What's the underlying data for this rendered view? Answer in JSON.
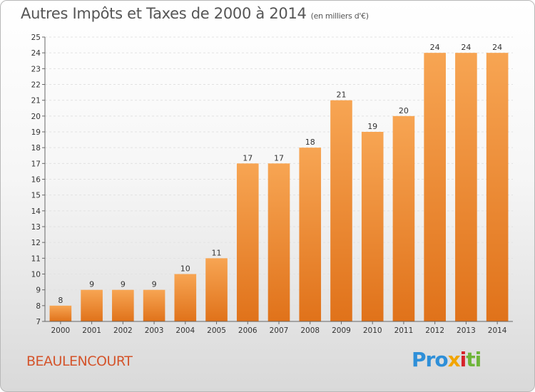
{
  "chart_data": {
    "type": "bar",
    "title": "Autres Impôts et Taxes de 2000 à 2014",
    "subtitle": "(en milliers d'€)",
    "categories": [
      "2000",
      "2001",
      "2002",
      "2003",
      "2004",
      "2005",
      "2006",
      "2007",
      "2008",
      "2009",
      "2010",
      "2011",
      "2012",
      "2013",
      "2014"
    ],
    "values": [
      8,
      9,
      9,
      9,
      10,
      11,
      17,
      17,
      18,
      21,
      19,
      20,
      24,
      24,
      24
    ],
    "ylim": [
      7,
      25
    ],
    "yticks": [
      7,
      8,
      9,
      10,
      11,
      12,
      13,
      14,
      15,
      16,
      17,
      18,
      19,
      20,
      21,
      22,
      23,
      24,
      25
    ],
    "grid": true,
    "bar_color": "#f08a2e"
  },
  "footer": {
    "town": "BEAULENCOURT",
    "logo": {
      "p1": "Pro",
      "p2": "x",
      "p3": "i",
      "p4": "ti"
    }
  }
}
